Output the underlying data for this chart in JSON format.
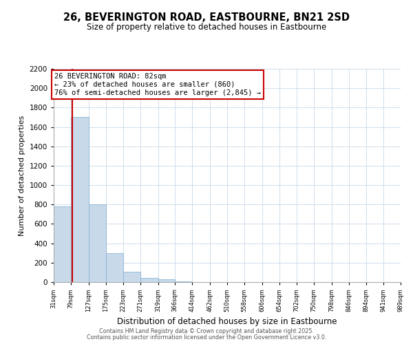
{
  "title": "26, BEVERINGTON ROAD, EASTBOURNE, BN21 2SD",
  "subtitle": "Size of property relative to detached houses in Eastbourne",
  "xlabel": "Distribution of detached houses by size in Eastbourne",
  "ylabel": "Number of detached properties",
  "bar_color": "#c8daea",
  "bar_edge_color": "#8ab4d4",
  "bin_edges": [
    31,
    79,
    127,
    175,
    223,
    271,
    319,
    366,
    414,
    462,
    510,
    558,
    606,
    654,
    702,
    750,
    798,
    846,
    894,
    941,
    989
  ],
  "bar_heights": [
    780,
    1700,
    800,
    300,
    110,
    40,
    25,
    5,
    0,
    0,
    0,
    0,
    0,
    0,
    0,
    0,
    0,
    0,
    0,
    0
  ],
  "property_size": 82,
  "vline_color": "#cc0000",
  "annotation_line1": "26 BEVERINGTON ROAD: 82sqm",
  "annotation_line2": "← 23% of detached houses are smaller (860)",
  "annotation_line3": "76% of semi-detached houses are larger (2,845) →",
  "annotation_box_color": "#ffffff",
  "annotation_box_edge_color": "#cc0000",
  "ylim": [
    0,
    2200
  ],
  "yticks": [
    0,
    200,
    400,
    600,
    800,
    1000,
    1200,
    1400,
    1600,
    1800,
    2000,
    2200
  ],
  "tick_labels": [
    "31sqm",
    "79sqm",
    "127sqm",
    "175sqm",
    "223sqm",
    "271sqm",
    "319sqm",
    "366sqm",
    "414sqm",
    "462sqm",
    "510sqm",
    "558sqm",
    "606sqm",
    "654sqm",
    "702sqm",
    "750sqm",
    "798sqm",
    "846sqm",
    "894sqm",
    "941sqm",
    "989sqm"
  ],
  "footer1": "Contains HM Land Registry data © Crown copyright and database right 2025.",
  "footer2": "Contains public sector information licensed under the Open Government Licence v3.0.",
  "bg_color": "#ffffff",
  "grid_color": "#c8d8e8"
}
